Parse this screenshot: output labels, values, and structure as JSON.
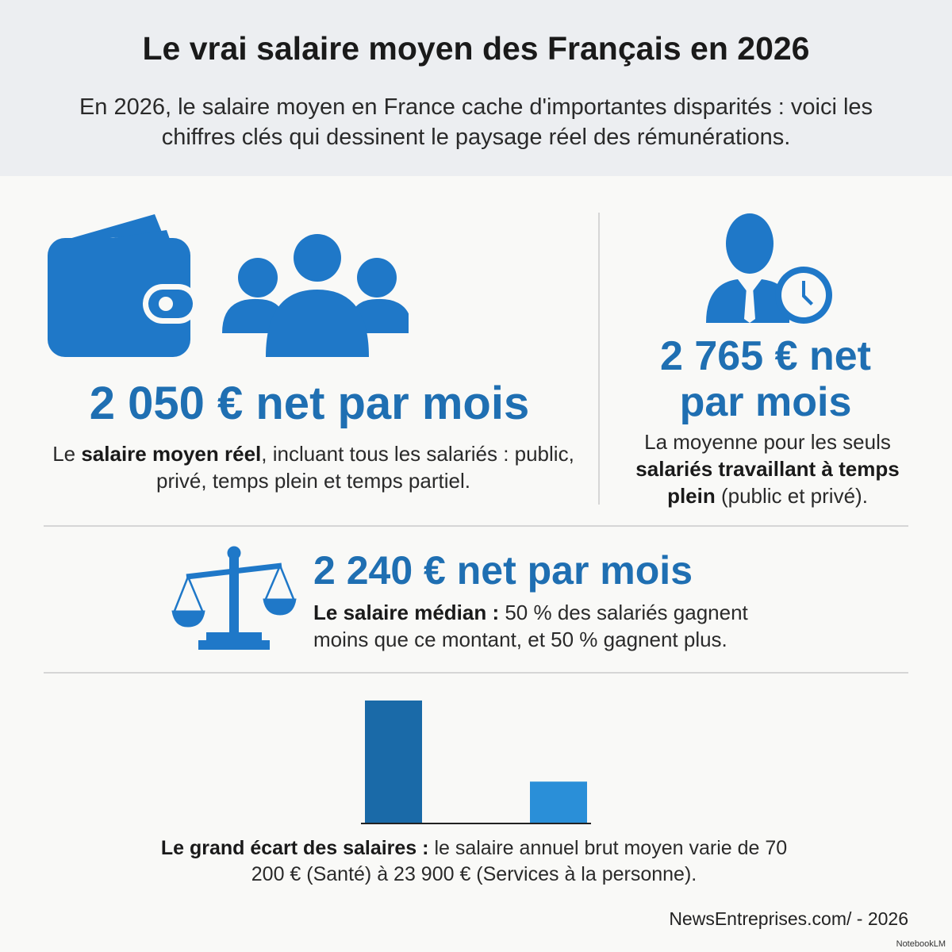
{
  "header": {
    "title": "Le vrai salaire moyen des Français en 2026",
    "subtitle": "En 2026, le salaire moyen en France cache d'importantes disparités : voici les chiffres clés qui dessinent le paysage réel des rémunérations."
  },
  "stats": [
    {
      "headline": "2 050 € net par mois",
      "description": [
        {
          "text": "Le "
        },
        {
          "text": "salaire moyen réel",
          "bold": true
        },
        {
          "text": ", incluant tous les salariés : public, privé, temps plein et temps partiel."
        }
      ]
    },
    {
      "headline": "2 765 € net par mois",
      "description": [
        {
          "text": "La moyenne pour les seuls "
        },
        {
          "text": "salariés travaillant à temps plein",
          "bold": true
        },
        {
          "text": " (public et privé)."
        }
      ]
    },
    {
      "headline": "2 240 € net par mois",
      "description": [
        {
          "text": "Le salaire médian :",
          "bold": true
        },
        {
          "text": " 50 % des salariés gagnent moins que ce montant, et 50 % gagnent plus."
        }
      ]
    }
  ],
  "gap": {
    "bars": [
      {
        "value": 70200,
        "color": "#1a6aa8"
      },
      {
        "value": 23900,
        "color": "#2a8fd8"
      }
    ],
    "description": [
      {
        "text": "Le grand écart des salaires :",
        "bold": true
      },
      {
        "text": " le salaire annuel brut moyen varie de 70 200 € (Santé) à 23 900 € (Services à la personne)."
      }
    ]
  },
  "footer": {
    "source": "NewsEntreprises.com/ - 2026",
    "brand": "NotebookLM"
  }
}
